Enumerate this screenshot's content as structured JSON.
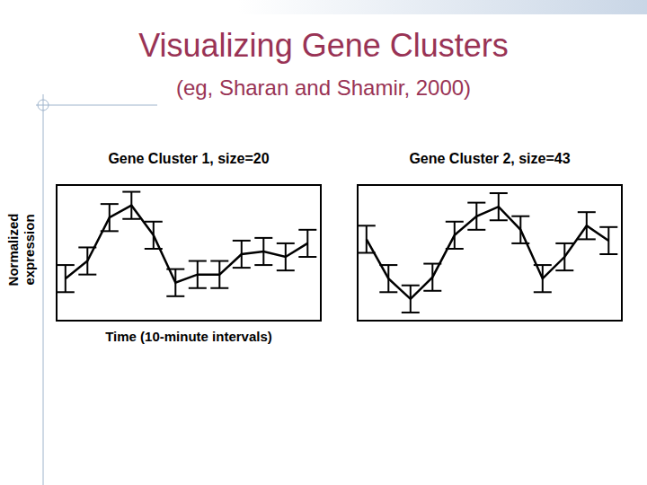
{
  "slide": {
    "title": "Visualizing Gene Clusters",
    "subtitle": "(eg, Sharan and Shamir, 2000)"
  },
  "chart_data": [
    {
      "type": "line",
      "title": "Gene Cluster 1, size=20",
      "x_label": "Time (10-minute intervals)",
      "y_label": "Normalized expression",
      "x": [
        1,
        2,
        3,
        4,
        5,
        6,
        7,
        8,
        9,
        10,
        11,
        12
      ],
      "series": [
        {
          "color": "#000000",
          "values": [
            3.1,
            4.4,
            7.6,
            8.5,
            6.3,
            2.8,
            3.4,
            3.4,
            4.9,
            5.1,
            4.7,
            5.7
          ],
          "errors": [
            1.0,
            1.0,
            1.0,
            1.0,
            1.0,
            1.0,
            1.0,
            1.0,
            1.0,
            1.0,
            1.0,
            1.0
          ]
        }
      ],
      "xlim": [
        0.6,
        12.6
      ],
      "ylim": [
        0,
        10
      ],
      "tick_labels": false
    },
    {
      "type": "line",
      "title": "Gene Cluster 2, size=43",
      "x": [
        1,
        2,
        3,
        4,
        5,
        6,
        7,
        8,
        9,
        10,
        11,
        12
      ],
      "series": [
        {
          "color": "#000000",
          "values": [
            6.0,
            3.1,
            1.6,
            3.2,
            6.3,
            7.7,
            8.4,
            6.7,
            3.1,
            4.7,
            7.0,
            5.9
          ],
          "errors": [
            1.0,
            1.0,
            1.0,
            1.0,
            1.0,
            1.0,
            1.0,
            1.0,
            1.0,
            1.0,
            1.0,
            1.0
          ]
        }
      ],
      "xlim": [
        0.6,
        12.6
      ],
      "ylim": [
        0,
        10
      ],
      "tick_labels": false
    }
  ]
}
